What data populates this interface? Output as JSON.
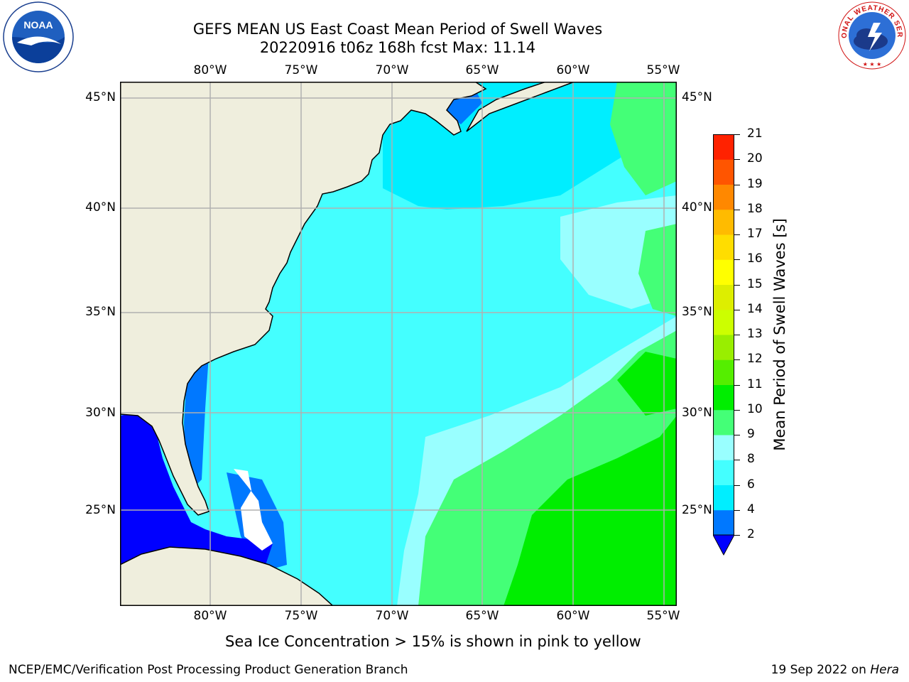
{
  "header": {
    "title_line1": "GEFS MEAN US East Coast Mean Period of Swell Waves",
    "title_line2": "20220916 t06z 168h fcst   Max: 11.14"
  },
  "logos": {
    "left": {
      "name": "noaa-logo",
      "text": "NOAA",
      "ring_text": "NATIONAL OCEANIC AND ATMOSPHERIC ADMINISTRATION · U.S. DEPARTMENT OF COMMERCE"
    },
    "right": {
      "name": "nws-logo",
      "ring_text": "NATIONAL WEATHER SERVICE"
    }
  },
  "map": {
    "lon_labels": [
      "80°W",
      "75°W",
      "70°W",
      "65°W",
      "60°W",
      "55°W"
    ],
    "lat_labels": [
      "45°N",
      "40°N",
      "35°N",
      "30°N",
      "25°N"
    ],
    "colors": {
      "land": "#efeedd",
      "ocean_base": "#44ffff",
      "grid": "#b0b0b0",
      "coast": "#000000"
    }
  },
  "colorbar": {
    "title": "Mean Period of Swell Waves [s]",
    "ticks": [
      "2",
      "4",
      "6",
      "8",
      "9",
      "10",
      "11",
      "12",
      "13",
      "14",
      "15",
      "16",
      "17",
      "18",
      "19",
      "20",
      "21"
    ],
    "colors": [
      "#0000ff",
      "#0078ff",
      "#00eeff",
      "#44ffff",
      "#99ffff",
      "#44ff77",
      "#00ee00",
      "#55ee00",
      "#99ee00",
      "#ccff00",
      "#ddee00",
      "#ffff00",
      "#ffdd00",
      "#ffbb00",
      "#ff8800",
      "#ff5500",
      "#ff2200",
      "#ff0000"
    ]
  },
  "footer": {
    "note": "Sea Ice Concentration > 15% is shown in pink to yellow",
    "left": "NCEP/EMC/Verification Post Processing Product Generation Branch",
    "date": "19 Sep 2022 on ",
    "host": "Hera"
  }
}
